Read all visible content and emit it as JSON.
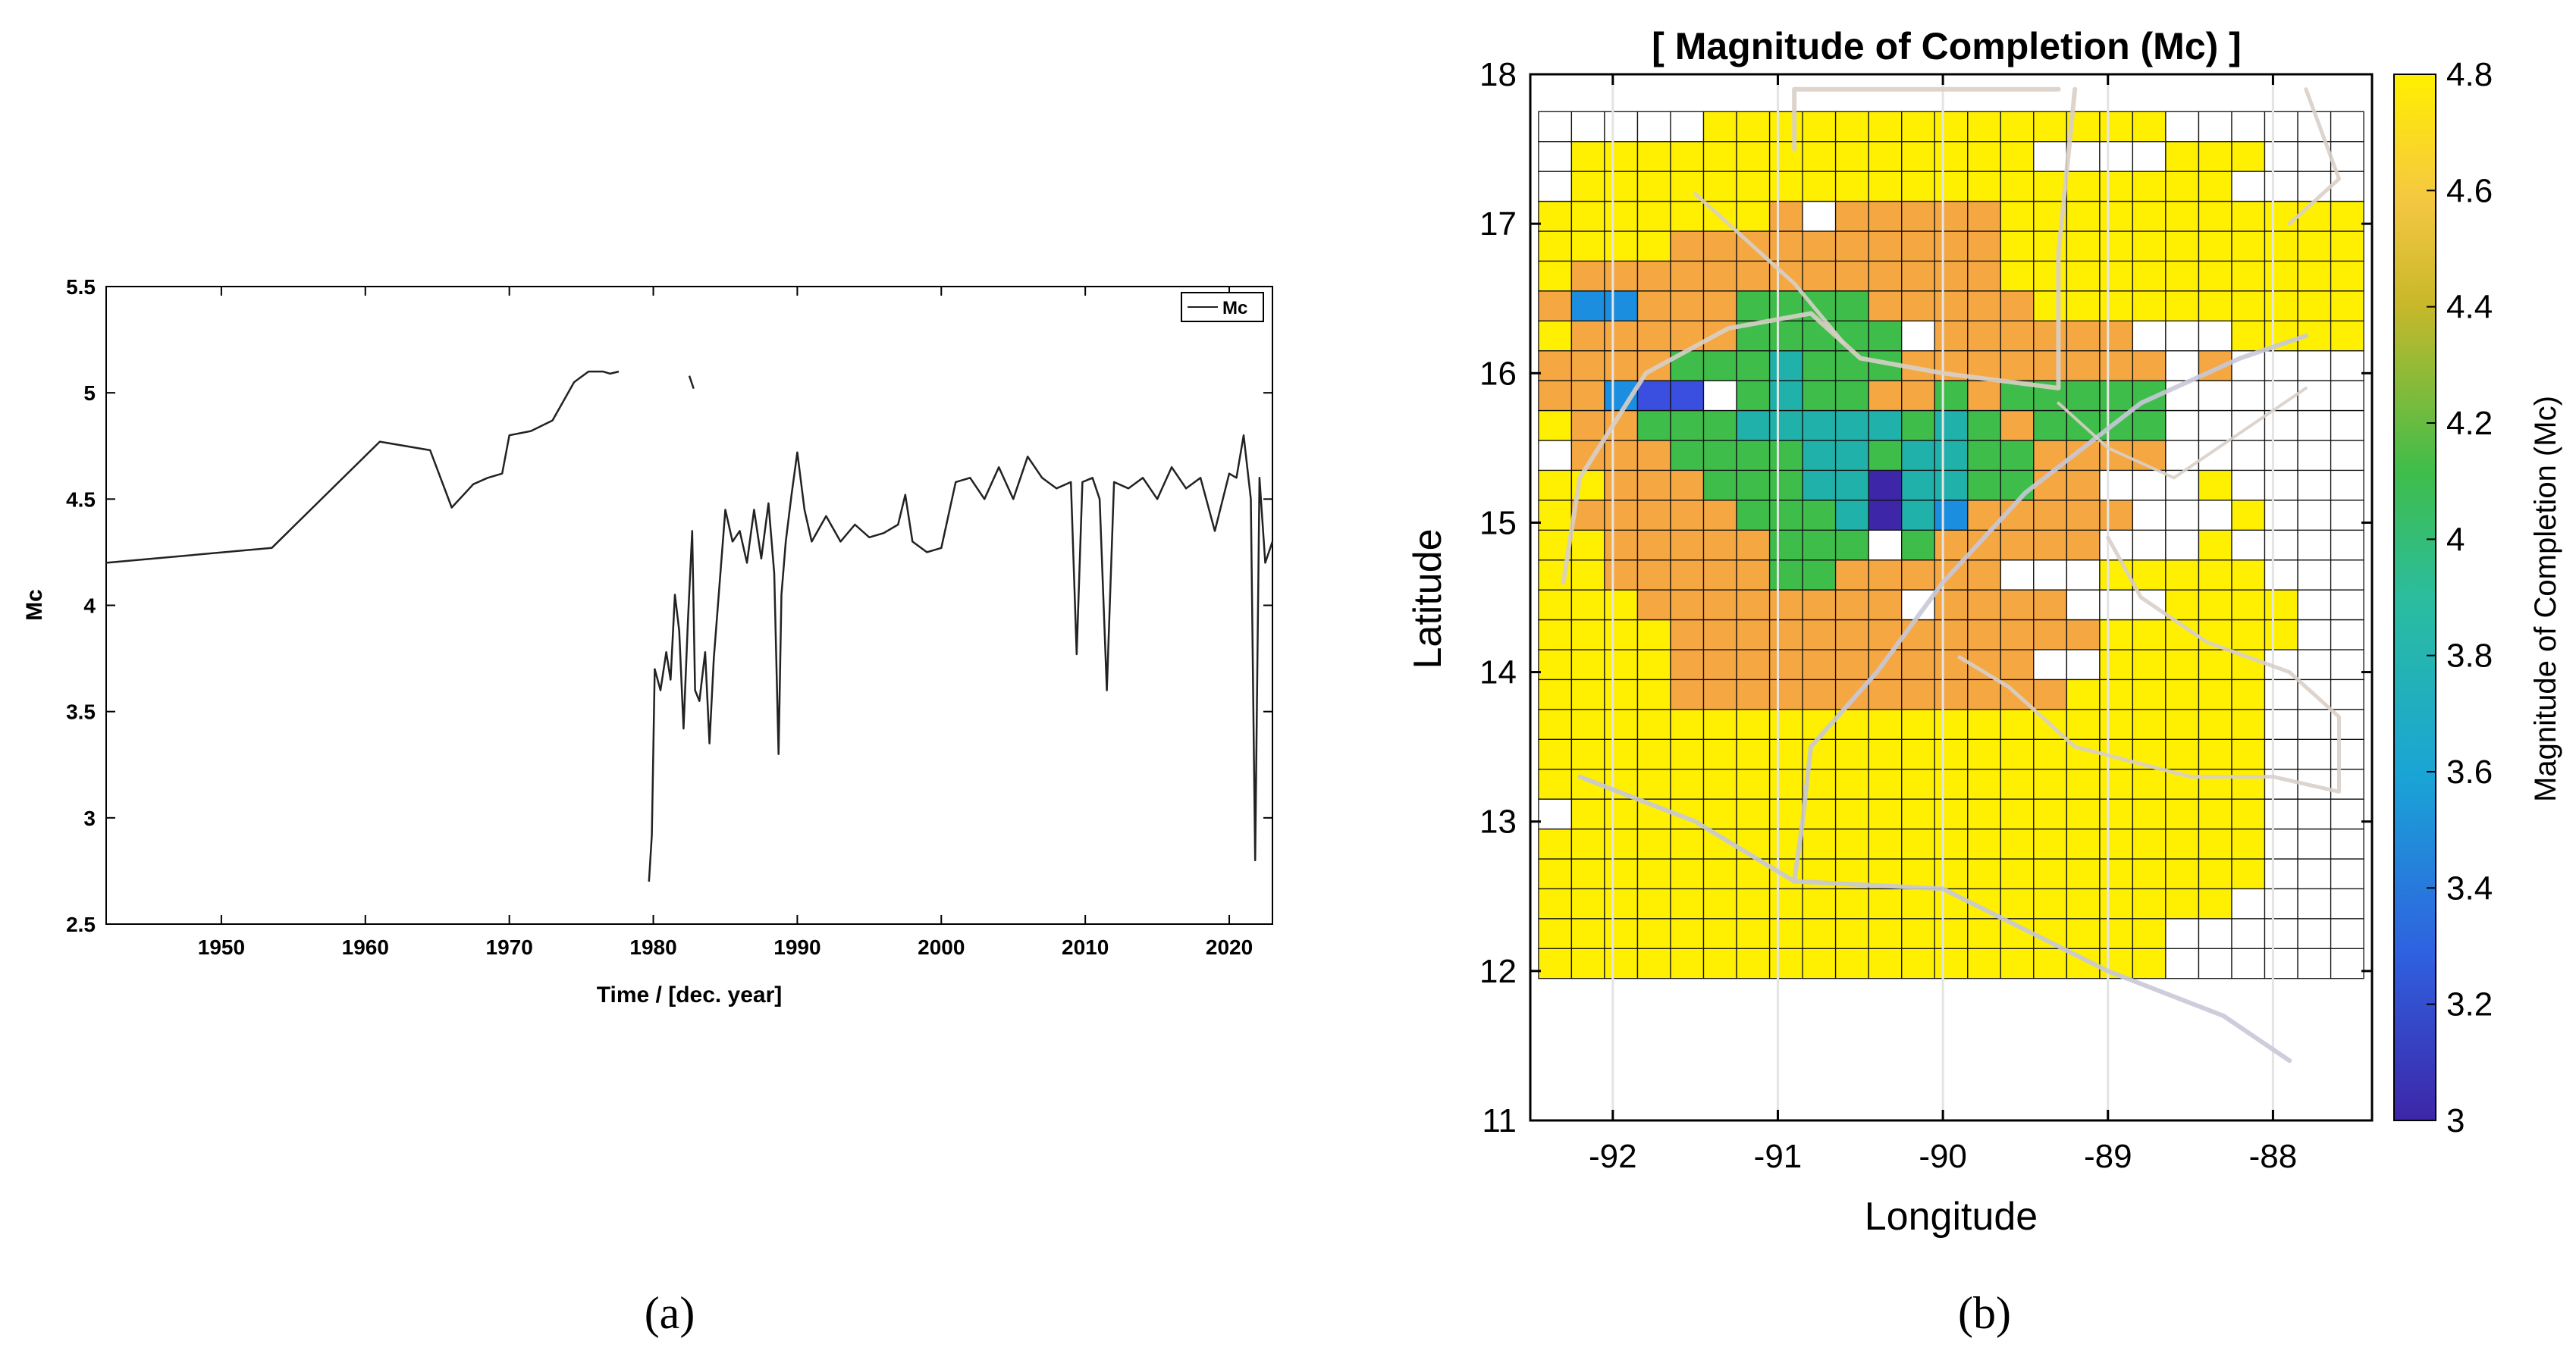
{
  "panel_a": {
    "caption": "(a)",
    "colors": {
      "line": "#222222",
      "axis": "#000000",
      "background": "#ffffff"
    }
  },
  "panel_b": {
    "caption": "(b)",
    "colors": {
      "grid_line": "#000000",
      "coast_lines": "#d8cfc8",
      "fault_lines": "#c8c8d8",
      "colormap": [
        "#3d26a8",
        "#2f61e0",
        "#1aa4d6",
        "#2bbd9e",
        "#3fbd4a",
        "#f5a742",
        "#ffef00"
      ]
    }
  },
  "chart_data": [
    {
      "type": "line",
      "title": "",
      "xlabel": "Time / [dec. year]",
      "ylabel": "Mc",
      "xlim": [
        1942,
        2023
      ],
      "ylim": [
        2.5,
        5.5
      ],
      "xticks": [
        1950,
        1960,
        1970,
        1980,
        1990,
        2000,
        2010,
        2020
      ],
      "yticks": [
        2.5,
        3,
        3.5,
        4,
        4.5,
        5,
        5.5
      ],
      "legend": [
        "Mc"
      ],
      "legend_position": "top-right",
      "series": [
        {
          "name": "Mc",
          "segments": [
            [
              [
                1942,
                4.2
              ],
              [
                1953.5,
                4.27
              ],
              [
                1961,
                4.77
              ],
              [
                1964.5,
                4.73
              ],
              [
                1966,
                4.46
              ],
              [
                1967.5,
                4.57
              ],
              [
                1968.5,
                4.6
              ],
              [
                1969.5,
                4.62
              ],
              [
                1970,
                4.8
              ],
              [
                1971.5,
                4.82
              ],
              [
                1973,
                4.87
              ],
              [
                1974.5,
                5.05
              ],
              [
                1975.5,
                5.1
              ],
              [
                1976.5,
                5.1
              ],
              [
                1977,
                5.09
              ],
              [
                1977.6,
                5.1
              ]
            ],
            [
              [
                1982.5,
                5.08
              ],
              [
                1982.8,
                5.02
              ]
            ],
            [
              [
                1979.7,
                2.7
              ],
              [
                1979.9,
                2.92
              ],
              [
                1980.1,
                3.7
              ],
              [
                1980.5,
                3.6
              ],
              [
                1980.9,
                3.78
              ],
              [
                1981.2,
                3.65
              ],
              [
                1981.5,
                4.05
              ],
              [
                1981.8,
                3.88
              ],
              [
                1982.1,
                3.42
              ],
              [
                1982.4,
                3.92
              ],
              [
                1982.7,
                4.35
              ],
              [
                1982.9,
                3.6
              ],
              [
                1983.2,
                3.55
              ],
              [
                1983.6,
                3.78
              ],
              [
                1983.9,
                3.35
              ],
              [
                1984.2,
                3.75
              ],
              [
                1984.6,
                4.1
              ],
              [
                1985,
                4.45
              ],
              [
                1985.5,
                4.3
              ],
              [
                1986,
                4.35
              ],
              [
                1986.5,
                4.2
              ],
              [
                1987,
                4.45
              ],
              [
                1987.5,
                4.22
              ],
              [
                1988,
                4.48
              ],
              [
                1988.4,
                4.15
              ],
              [
                1988.7,
                3.3
              ],
              [
                1988.9,
                4.05
              ],
              [
                1989.2,
                4.3
              ],
              [
                1989.6,
                4.52
              ],
              [
                1990,
                4.72
              ],
              [
                1990.5,
                4.45
              ],
              [
                1991,
                4.3
              ],
              [
                1992,
                4.42
              ],
              [
                1993,
                4.3
              ],
              [
                1994,
                4.38
              ],
              [
                1995,
                4.32
              ],
              [
                1996,
                4.34
              ],
              [
                1997,
                4.38
              ],
              [
                1997.5,
                4.52
              ],
              [
                1998,
                4.3
              ],
              [
                1999,
                4.25
              ],
              [
                2000,
                4.27
              ],
              [
                2001,
                4.58
              ],
              [
                2002,
                4.6
              ],
              [
                2003,
                4.5
              ],
              [
                2004,
                4.65
              ],
              [
                2005,
                4.5
              ],
              [
                2006,
                4.7
              ],
              [
                2007,
                4.6
              ],
              [
                2008,
                4.55
              ],
              [
                2009,
                4.58
              ],
              [
                2009.4,
                3.77
              ],
              [
                2009.8,
                4.58
              ],
              [
                2010.5,
                4.6
              ],
              [
                2011,
                4.5
              ],
              [
                2011.5,
                3.6
              ],
              [
                2012,
                4.58
              ],
              [
                2013,
                4.55
              ],
              [
                2014,
                4.6
              ],
              [
                2015,
                4.5
              ],
              [
                2016,
                4.65
              ],
              [
                2017,
                4.55
              ],
              [
                2018,
                4.6
              ],
              [
                2019,
                4.35
              ],
              [
                2020,
                4.62
              ],
              [
                2020.5,
                4.6
              ],
              [
                2021,
                4.8
              ],
              [
                2021.5,
                4.5
              ],
              [
                2021.8,
                2.8
              ],
              [
                2022.1,
                4.6
              ],
              [
                2022.5,
                4.2
              ],
              [
                2023,
                4.3
              ]
            ]
          ]
        }
      ]
    },
    {
      "type": "heatmap",
      "title": "[ Magnitude of Completion (Mc) ]",
      "xlabel": "Longitude",
      "ylabel": "Latitude",
      "colorbar_label": "Magnitude of Completion (Mc)",
      "xlim": [
        -92.5,
        -87.4
      ],
      "ylim": [
        11,
        18
      ],
      "xticks": [
        -92,
        -91,
        -90,
        -89,
        -88
      ],
      "yticks": [
        11,
        12,
        13,
        14,
        15,
        16,
        17,
        18
      ],
      "colorbar_range": [
        3,
        4.8
      ],
      "colorbar_ticks": [
        3,
        3.2,
        3.4,
        3.6,
        3.8,
        4,
        4.2,
        4.4,
        4.6,
        4.8
      ],
      "grid_origin": [
        -92.45,
        11.95
      ],
      "cell_size_deg": 0.2,
      "grid_cols": 25,
      "grid_rows": 29,
      "legend_codes": {
        "0": "no data",
        "1": "4.8",
        "2": "4.5",
        "3": "4.1",
        "4": "3.9",
        "5": "3.5",
        "6": "3.2",
        "7": "3.05"
      },
      "rows": [
        "1111111111111111111000000",
        "1111111111111111111000000",
        "1111111111111111111110000",
        "1111111111111111111111000",
        "1111111111111111111111000",
        "0111111111111111111111000",
        "1111111111111111111111000",
        "1111111111111111111111000",
        "1111111111111111111111000",
        "1111222222222222111111000",
        "1111222222222220011111000",
        "1111222222222222211111100",
        "1112222222202222000111100",
        "1122222332222200011111000",
        "1122222333032222200010000",
        "1222223334745222220001000",
        "1122233344744332200010000",
        "0222333344344332222000000",
        "1223334444434323333000000",
        "2256603433223233333000000",
        "2222333433322222222020000",
        "1222223333302222220001111",
        "2552223333222221111111111",
        "1222222222222211111111111",
        "1111222222222211111111111",
        "1111111202222211111111111",
        "0111111111111111111110000",
        "0111111111111110000111000",
        "0000011111111111111000000"
      ]
    }
  ]
}
